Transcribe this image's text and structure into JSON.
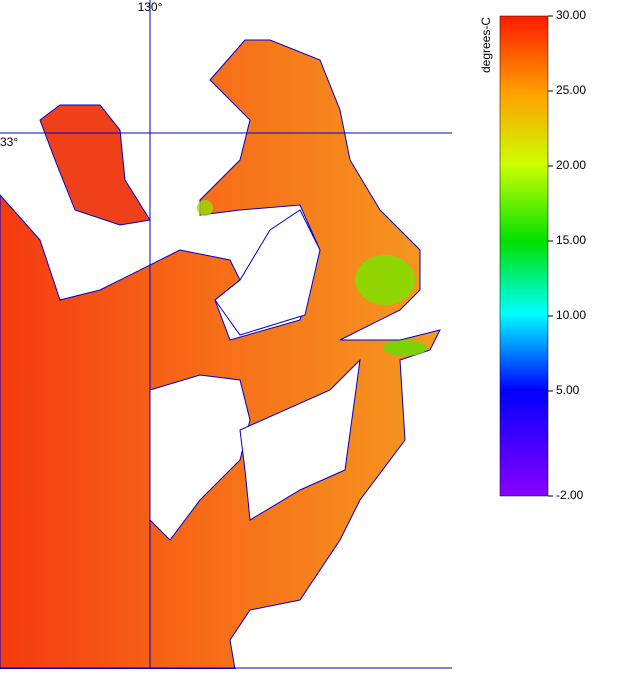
{
  "map": {
    "graticule": {
      "lon_label": "130°",
      "lat_label": "33°"
    }
  },
  "colorbar": {
    "label": "degrees-C",
    "range": [
      -2,
      30
    ],
    "ticks": [
      {
        "value": 30,
        "label": "30.00"
      },
      {
        "value": 25,
        "label": "25.00"
      },
      {
        "value": 20,
        "label": "20.00"
      },
      {
        "value": 15,
        "label": "15.00"
      },
      {
        "value": 10,
        "label": "10.00"
      },
      {
        "value": 5,
        "label": "5.00"
      },
      {
        "value": -2,
        "label": "-2.00"
      }
    ]
  }
}
